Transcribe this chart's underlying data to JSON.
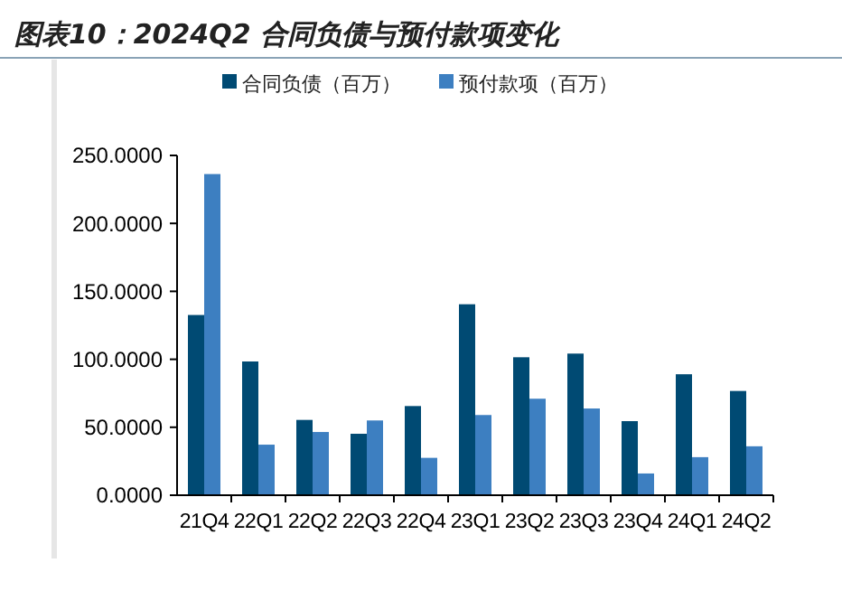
{
  "chart_data": {
    "type": "bar",
    "title": "图表10：2024Q2 合同负债与预付款项变化",
    "categories": [
      "21Q4",
      "22Q1",
      "22Q2",
      "22Q3",
      "22Q4",
      "23Q1",
      "23Q2",
      "23Q3",
      "23Q4",
      "24Q1",
      "24Q2"
    ],
    "series": [
      {
        "name": "合同负债（百万）",
        "color": "#004a73",
        "values": [
          132.6,
          98.4,
          55.4,
          45.2,
          65.6,
          140.5,
          101.5,
          104.2,
          54.5,
          89,
          76.7
        ]
      },
      {
        "name": "预付款项（百万）",
        "color": "#3d7fc1",
        "values": [
          236.3,
          37.2,
          46.5,
          55,
          27.5,
          59,
          71,
          63.8,
          16,
          28,
          36
        ]
      }
    ],
    "ylim": [
      0,
      250
    ],
    "yticks": [
      {
        "value": 0,
        "label": "0.0000"
      },
      {
        "value": 50,
        "label": "50.0000"
      },
      {
        "value": 100,
        "label": "100.0000"
      },
      {
        "value": 150,
        "label": "150.0000"
      },
      {
        "value": 200,
        "label": "200.0000"
      },
      {
        "value": 250,
        "label": "250.0000"
      }
    ],
    "grid": false,
    "legend": "top"
  }
}
